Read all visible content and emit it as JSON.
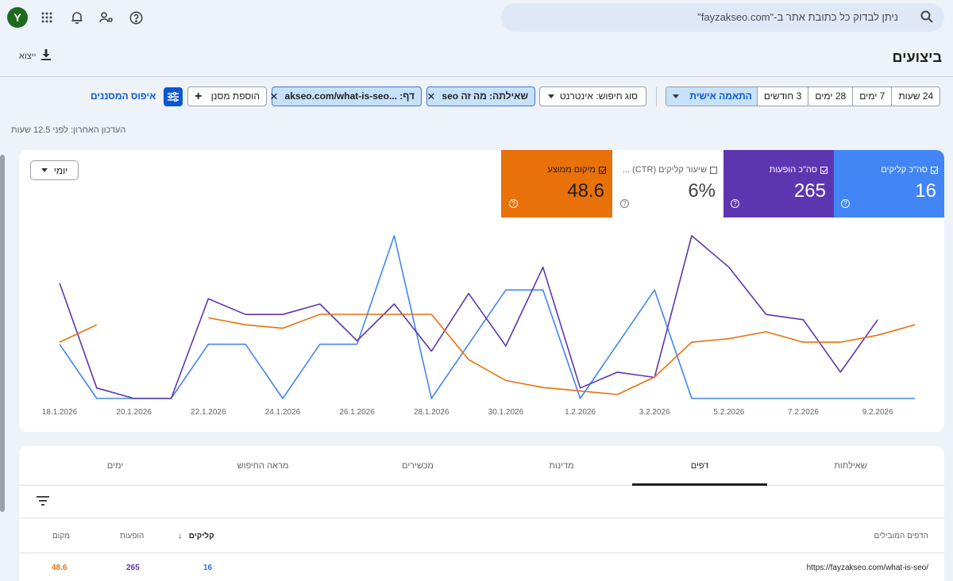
{
  "topbar": {
    "avatar_letter": "Y",
    "search_placeholder": "ניתן לבדוק כל כתובת אתר ב-\"fayzakseo.com\""
  },
  "page": {
    "title": "ביצועים",
    "export_label": "ייצוא"
  },
  "date_range": {
    "options": [
      "24 שעות",
      "7 ימים",
      "28 ימים",
      "3 חודשים",
      "התאמה אישית"
    ],
    "selected": "התאמה אישית"
  },
  "filters": {
    "search_type": "סוג חיפוש: אינטרנט",
    "query": "שאילתה: מה זה seo",
    "page": "דף: ...akseo.com/what-is-seo",
    "add_filter": "הוספת מסנן",
    "reset": "איפוס המסננים"
  },
  "last_update": "העדכון האחרון: לפני 12.5 שעות",
  "metrics": {
    "clicks": {
      "label": "סה\"כ קליקים",
      "value": "16",
      "checked": true,
      "color": "#4285f4"
    },
    "impressions": {
      "label": "סה\"כ הופעות",
      "value": "265",
      "checked": true,
      "color": "#5e35b1"
    },
    "ctr": {
      "label": "שיעור קליקים (CTR) ...",
      "value": "6%",
      "checked": false
    },
    "position": {
      "label": "מיקום ממוצע",
      "value": "48.6",
      "checked": true,
      "color": "#e8710a"
    }
  },
  "granularity": "יומי",
  "chart_data": {
    "type": "line",
    "x": [
      "18.1.2026",
      "19.1.2026",
      "20.1.2026",
      "21.1.2026",
      "22.1.2026",
      "23.1.2026",
      "24.1.2026",
      "25.1.2026",
      "26.1.2026",
      "27.1.2026",
      "28.1.2026",
      "29.1.2026",
      "30.1.2026",
      "31.1.2026",
      "1.2.2026",
      "2.2.2026",
      "3.2.2026",
      "4.2.2026",
      "5.2.2026",
      "6.2.2026",
      "7.2.2026",
      "8.2.2026",
      "9.2.2026",
      "10.2.2026"
    ],
    "x_tick_labels": [
      "18.1.2026",
      "20.1.2026",
      "22.1.2026",
      "24.1.2026",
      "26.1.2026",
      "28.1.2026",
      "30.1.2026",
      "1.2.2026",
      "3.2.2026",
      "5.2.2026",
      "7.2.2026",
      "9.2.2026"
    ],
    "series": [
      {
        "name": "סה\"כ קליקים",
        "color": "#4285f4",
        "values": [
          1,
          0,
          0,
          0,
          1,
          1,
          0,
          1,
          1,
          3,
          0,
          1,
          2,
          2,
          0,
          1,
          2,
          0,
          0,
          0,
          0,
          0,
          0,
          0
        ]
      },
      {
        "name": "סה\"כ הופעות",
        "color": "#5e35b1",
        "values": [
          22,
          2,
          0,
          0,
          19,
          16,
          16,
          18,
          11,
          18,
          9,
          20,
          10,
          25,
          2,
          5,
          4,
          31,
          25,
          16,
          15,
          5,
          15,
          null
        ]
      },
      {
        "name": "מיקום ממוצע",
        "color": "#e8710a",
        "values": [
          70,
          65,
          null,
          null,
          63,
          65,
          66,
          62,
          62,
          62,
          62,
          75,
          81,
          83,
          84,
          85,
          80,
          70,
          69,
          67,
          70,
          70,
          68,
          65
        ]
      }
    ]
  },
  "table": {
    "tabs": [
      "שאילתות",
      "דפים",
      "מדינות",
      "מכשירים",
      "מראה החיפוש",
      "ימים"
    ],
    "active_tab": "דפים",
    "headers": {
      "page": "הדפים המובילים",
      "clicks": "קליקים",
      "impressions": "הופעות",
      "position": "מקום"
    },
    "rows": [
      {
        "page": "https://fayzakseo.com/what-is-seo/",
        "clicks": "16",
        "impressions": "265",
        "position": "48.6"
      }
    ]
  }
}
